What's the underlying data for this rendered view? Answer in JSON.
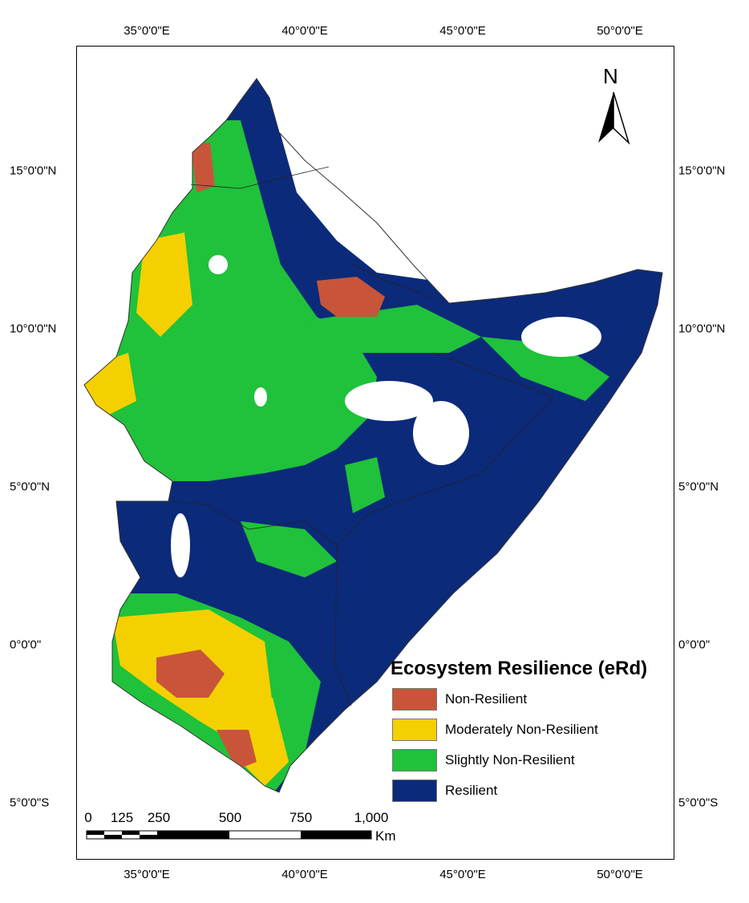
{
  "graticule": {
    "top_labels": [
      "35°0'0\"E",
      "40°0'0\"E",
      "45°0'0\"E",
      "50°0'0\"E"
    ],
    "bottom_labels": [
      "35°0'0\"E",
      "40°0'0\"E",
      "45°0'0\"E",
      "50°0'0\"E"
    ],
    "left_labels": [
      "15°0'0\"N",
      "10°0'0\"N",
      "5°0'0\"N",
      "0°0'0\"",
      "5°0'0\"S"
    ],
    "right_labels": [
      "15°0'0\"N",
      "10°0'0\"N",
      "5°0'0\"N",
      "0°0'0\"",
      "5°0'0\"S"
    ]
  },
  "north_arrow": {
    "label": "N",
    "icon": "north-arrow-icon"
  },
  "legend": {
    "title": "Ecosystem Resilience (eRd)",
    "items": [
      {
        "label": "Non-Resilient",
        "color": "#c8553a"
      },
      {
        "label": "Moderately Non-Resilient",
        "color": "#f5d000"
      },
      {
        "label": "Slightly Non-Resilient",
        "color": "#1fc23a"
      },
      {
        "label": "Resilient",
        "color": "#0b2a7a"
      }
    ]
  },
  "scale_bar": {
    "ticks": [
      "0",
      "125",
      "250",
      "500",
      "750",
      "1,000"
    ],
    "unit": "Km"
  }
}
